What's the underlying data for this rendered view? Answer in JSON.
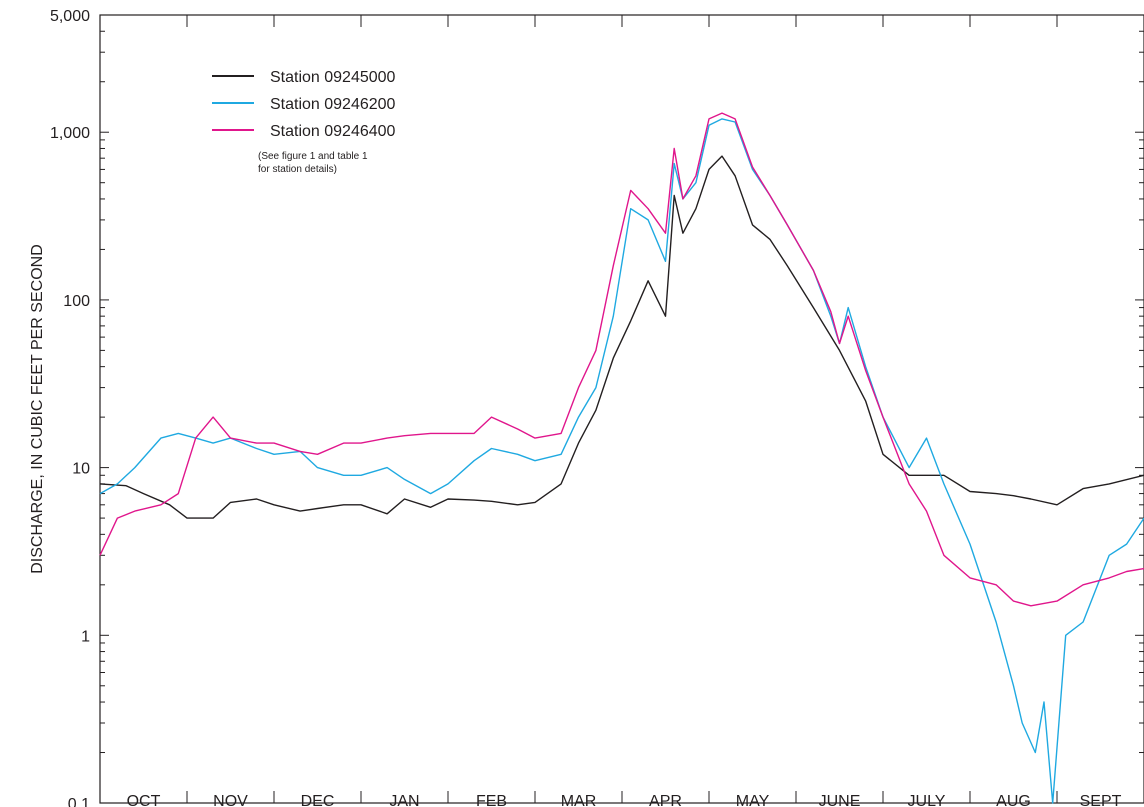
{
  "chart_data": {
    "type": "line",
    "title": "",
    "xlabel": "",
    "ylabel": "DISCHARGE, IN CUBIC FEET PER SECOND",
    "yscale": "log",
    "ylim": [
      0.1,
      5000
    ],
    "yticks": [
      {
        "value": 5000,
        "label": "5,000"
      },
      {
        "value": 1000,
        "label": "1,000"
      },
      {
        "value": 100,
        "label": "100"
      },
      {
        "value": 10,
        "label": "10"
      },
      {
        "value": 1,
        "label": "1"
      },
      {
        "value": 0.1,
        "label": "0.1"
      }
    ],
    "xlim": [
      0,
      12
    ],
    "months": [
      "OCT",
      "NOV",
      "DEC",
      "JAN",
      "FEB",
      "MAR",
      "APR",
      "MAY",
      "JUNE",
      "JULY",
      "AUG",
      "SEPT"
    ],
    "grid": false,
    "legend_position": "top-left",
    "note_lines": [
      "(See figure 1 and table 1",
      "for station details)"
    ],
    "colors": {
      "axis": "#231f20",
      "s1": "#231f20",
      "s2": "#1fa9e1",
      "s3": "#e0168c"
    },
    "series": [
      {
        "name": "Station 09245000",
        "color": "#231f20",
        "x": [
          0,
          0.3,
          0.5,
          0.8,
          1.0,
          1.3,
          1.5,
          1.8,
          2.0,
          2.3,
          2.5,
          2.8,
          3.0,
          3.3,
          3.5,
          3.8,
          4.0,
          4.3,
          4.5,
          4.8,
          5.0,
          5.3,
          5.5,
          5.7,
          5.9,
          6.1,
          6.3,
          6.5,
          6.6,
          6.7,
          6.85,
          7.0,
          7.15,
          7.3,
          7.5,
          7.7,
          7.9,
          8.2,
          8.5,
          8.8,
          9.0,
          9.3,
          9.5,
          9.7,
          10.0,
          10.3,
          10.5,
          10.7,
          11.0,
          11.3,
          11.6,
          12.0
        ],
        "y": [
          8,
          7.8,
          7,
          6,
          5,
          5,
          6.2,
          6.5,
          6,
          5.5,
          5.7,
          6,
          6,
          5.3,
          6.5,
          5.8,
          6.5,
          6.4,
          6.3,
          6,
          6.2,
          8,
          14,
          22,
          45,
          75,
          130,
          80,
          420,
          250,
          350,
          600,
          720,
          550,
          280,
          230,
          160,
          90,
          50,
          25,
          12,
          9,
          9,
          9,
          7.2,
          7,
          6.8,
          6.5,
          6,
          7.5,
          8,
          9
        ]
      },
      {
        "name": "Station 09246200",
        "color": "#1fa9e1",
        "x": [
          0,
          0.2,
          0.4,
          0.7,
          0.9,
          1.1,
          1.3,
          1.5,
          1.8,
          2.0,
          2.3,
          2.5,
          2.8,
          3.0,
          3.3,
          3.5,
          3.8,
          4.0,
          4.3,
          4.5,
          4.8,
          5.0,
          5.3,
          5.5,
          5.7,
          5.9,
          6.1,
          6.3,
          6.5,
          6.6,
          6.7,
          6.85,
          7.0,
          7.15,
          7.3,
          7.5,
          7.7,
          7.9,
          8.2,
          8.4,
          8.5,
          8.6,
          8.8,
          9.0,
          9.3,
          9.5,
          9.7,
          10.0,
          10.3,
          10.5,
          10.6,
          10.75,
          10.85,
          10.95,
          11.1,
          11.3,
          11.6,
          11.8,
          12.0
        ],
        "y": [
          7,
          8,
          10,
          15,
          16,
          15,
          14,
          15,
          13,
          12,
          12.5,
          10,
          9,
          9,
          10,
          8.5,
          7,
          8,
          11,
          13,
          12,
          11,
          12,
          20,
          30,
          80,
          350,
          300,
          170,
          650,
          400,
          500,
          1100,
          1200,
          1150,
          600,
          420,
          280,
          150,
          80,
          55,
          90,
          40,
          20,
          10,
          15,
          8,
          3.5,
          1.2,
          0.5,
          0.3,
          0.2,
          0.4,
          0.1,
          1.0,
          1.2,
          3,
          3.5,
          5
        ]
      },
      {
        "name": "Station 09246400",
        "color": "#e0168c",
        "x": [
          0,
          0.2,
          0.4,
          0.7,
          0.9,
          1.1,
          1.3,
          1.5,
          1.8,
          2.0,
          2.3,
          2.5,
          2.8,
          3.0,
          3.3,
          3.5,
          3.8,
          4.0,
          4.3,
          4.5,
          4.8,
          5.0,
          5.3,
          5.5,
          5.7,
          5.9,
          6.1,
          6.3,
          6.5,
          6.6,
          6.7,
          6.85,
          7.0,
          7.15,
          7.3,
          7.5,
          7.7,
          7.9,
          8.2,
          8.4,
          8.5,
          8.6,
          8.8,
          9.0,
          9.3,
          9.5,
          9.7,
          10.0,
          10.3,
          10.5,
          10.7,
          11.0,
          11.3,
          11.6,
          11.8,
          12.0
        ],
        "y": [
          3,
          5,
          5.5,
          6,
          7,
          15,
          20,
          15,
          14,
          14,
          12.5,
          12,
          14,
          14,
          15,
          15.5,
          16,
          16,
          16,
          20,
          17,
          15,
          16,
          30,
          50,
          160,
          450,
          350,
          250,
          800,
          400,
          550,
          1200,
          1300,
          1200,
          620,
          420,
          280,
          150,
          85,
          55,
          80,
          38,
          20,
          8,
          5.5,
          3,
          2.2,
          2,
          1.6,
          1.5,
          1.6,
          2.0,
          2.2,
          2.4,
          2.5
        ]
      }
    ]
  }
}
